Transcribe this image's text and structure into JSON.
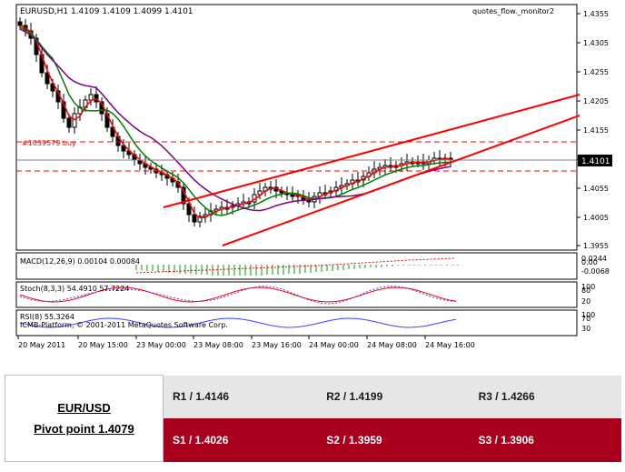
{
  "chart": {
    "header": "EURUSD,H1  1.4109 1.4109 1.4099 1.4101",
    "indicator_name": "quotes_flow._monitor2",
    "buy_label": "#1039579 buy",
    "current_price": "1.4101",
    "price_ticks": [
      "1.4355",
      "1.4305",
      "1.4255",
      "1.4205",
      "1.4155",
      "1.4105",
      "1.4055",
      "1.4005",
      "1.3955"
    ],
    "macd_label": "MACD(12,26,9) 0.00104 0.00084",
    "macd_ticks": [
      "0.0244",
      "0.00",
      "-0.0068"
    ],
    "stoch_label": "Stoch(8,3,3) 54.4910 57.7224",
    "stoch_ticks": [
      "100",
      "80",
      "20"
    ],
    "rsi_label": "RSI(8) 55.3264",
    "rsi_ticks": [
      "100",
      "70",
      "30"
    ],
    "copyright": "ICMB-Platform, © 2001-2011 MetaQuotes Software Corp.",
    "time_ticks": [
      "20 May 2011",
      "20 May 15:00",
      "23 May 00:00",
      "23 May 08:00",
      "23 May 16:00",
      "24 May 00:00",
      "24 May 08:00",
      "24 May 16:00"
    ],
    "colors": {
      "up": "#ffffff",
      "down": "#000000",
      "ma_fast": "#ff0000",
      "ma_mid": "#008000",
      "ma_slow": "#800080",
      "trend": "#ff0000"
    }
  },
  "pivot": {
    "pair": "EUR/USD",
    "pivot_point": "Pivot point 1.4079",
    "r1": "R1 / 1.4146",
    "r2": "R2 / 1.4199",
    "r3": "R3 / 1.4266",
    "s1": "S1 / 1.4026",
    "s2": "S2 / 1.3959",
    "s3": "S3 / 1.3906",
    "colors": {
      "resistance_bg": "#e6e6e6",
      "support_bg": "#a8001c"
    }
  }
}
